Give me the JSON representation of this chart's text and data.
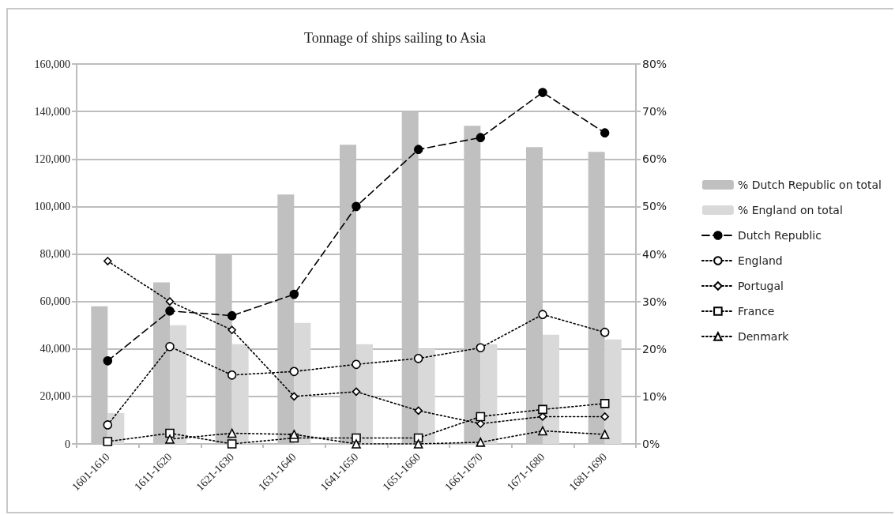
{
  "chart_data": {
    "type": "line",
    "title": "Tonnage of ships sailing to Asia",
    "categories": [
      "1601-1610",
      "1611-1620",
      "1621-1630",
      "1631-1640",
      "1641-1650",
      "1651-1660",
      "1661-1670",
      "1671-1680",
      "1681-1690"
    ],
    "series": [
      {
        "name": "% Dutch Republic on total",
        "type": "bar",
        "axis": "y2",
        "color": "#c0c0c0",
        "values": [
          29,
          34,
          40,
          52.5,
          63,
          70,
          67,
          62.5,
          61.5
        ]
      },
      {
        "name": "% England on total",
        "type": "bar",
        "axis": "y2",
        "color": "#d9d9d9",
        "values": [
          6.5,
          25,
          21,
          25.5,
          21,
          20,
          21,
          23,
          22
        ]
      },
      {
        "name": "Dutch Republic",
        "color": "#000000",
        "marker": "circle",
        "line_style": "dashed",
        "values": [
          35000,
          56000,
          54000,
          63000,
          100000,
          124000,
          129000,
          148000,
          131000
        ]
      },
      {
        "name": "England",
        "color": "#000000",
        "marker": "circle",
        "line_style": "dotted",
        "values": [
          8000,
          41000,
          29000,
          30500,
          33500,
          36000,
          40500,
          54500,
          47000
        ]
      },
      {
        "name": "Portugal",
        "color": "#000000",
        "marker": "diamond",
        "line_style": "dotted",
        "values": [
          77000,
          60000,
          48000,
          20000,
          22000,
          14000,
          8500,
          11500,
          11500
        ]
      },
      {
        "name": "France",
        "color": "#000000",
        "marker": "square",
        "line_style": "dotted",
        "values": [
          1000,
          4500,
          0,
          2500,
          2500,
          2500,
          11500,
          14500,
          17000
        ]
      },
      {
        "name": "Denmark",
        "color": "#000000",
        "marker": "triangle",
        "line_style": "dotted",
        "values": [
          null,
          2000,
          4500,
          4000,
          0,
          0,
          700,
          5500,
          4000
        ]
      }
    ],
    "ylim": [
      0,
      160000
    ],
    "yticks": [
      0,
      {
        "value": 20000,
        "label": "20,000"
      },
      {
        "value": 40000,
        "label": "40,000"
      },
      {
        "value": 60000,
        "label": "60,000"
      },
      {
        "value": 80000,
        "label": "80,000"
      },
      {
        "value": 100000,
        "label": "100,000"
      },
      {
        "value": 120000,
        "label": "120,000"
      },
      {
        "value": 140000,
        "label": "140,000"
      },
      {
        "value": 160000,
        "label": "160,000"
      }
    ],
    "y2lim": [
      0,
      80
    ],
    "y2ticks": [
      {
        "value": 0,
        "label": "0%"
      },
      {
        "value": 10,
        "label": "10%"
      },
      {
        "value": 20,
        "label": "20%"
      },
      {
        "value": 30,
        "label": "30%"
      },
      {
        "value": 40,
        "label": "40%"
      },
      {
        "value": 50,
        "label": "50%"
      },
      {
        "value": 60,
        "label": "60%"
      },
      {
        "value": 70,
        "label": "70%"
      },
      {
        "value": 80,
        "label": "80%"
      }
    ],
    "grid": "y",
    "legend": "right"
  }
}
